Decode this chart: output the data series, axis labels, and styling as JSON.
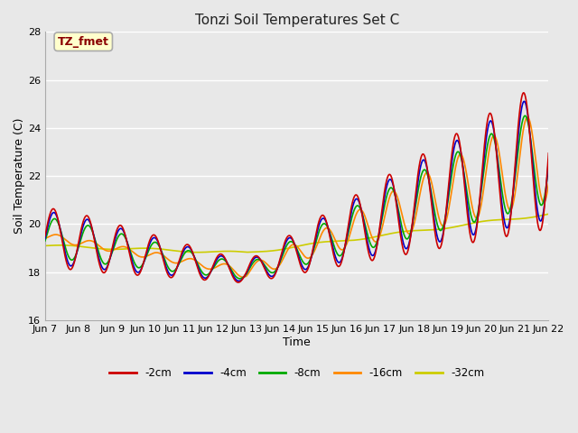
{
  "title": "Tonzi Soil Temperatures Set C",
  "xlabel": "Time",
  "ylabel": "Soil Temperature (C)",
  "ylim": [
    16,
    28
  ],
  "background_color": "#e8e8e8",
  "annotation_text": "TZ_fmet",
  "annotation_color": "#8b0000",
  "annotation_bg": "#ffffcc",
  "tick_labels": [
    "Jun 7",
    "Jun 8",
    "Jun 9",
    "Jun 10",
    "Jun 11",
    "Jun 12",
    "Jun 13",
    "Jun 14",
    "Jun 15",
    "Jun 16",
    "Jun 17",
    "Jun 18",
    "Jun 19",
    "Jun 20",
    "Jun 21",
    "Jun 22"
  ],
  "series": {
    "-2cm": {
      "color": "#cc0000",
      "lw": 1.2
    },
    "-4cm": {
      "color": "#0000cc",
      "lw": 1.2
    },
    "-8cm": {
      "color": "#00aa00",
      "lw": 1.2
    },
    "-16cm": {
      "color": "#ff8800",
      "lw": 1.2
    },
    "-32cm": {
      "color": "#cccc00",
      "lw": 1.2
    }
  }
}
